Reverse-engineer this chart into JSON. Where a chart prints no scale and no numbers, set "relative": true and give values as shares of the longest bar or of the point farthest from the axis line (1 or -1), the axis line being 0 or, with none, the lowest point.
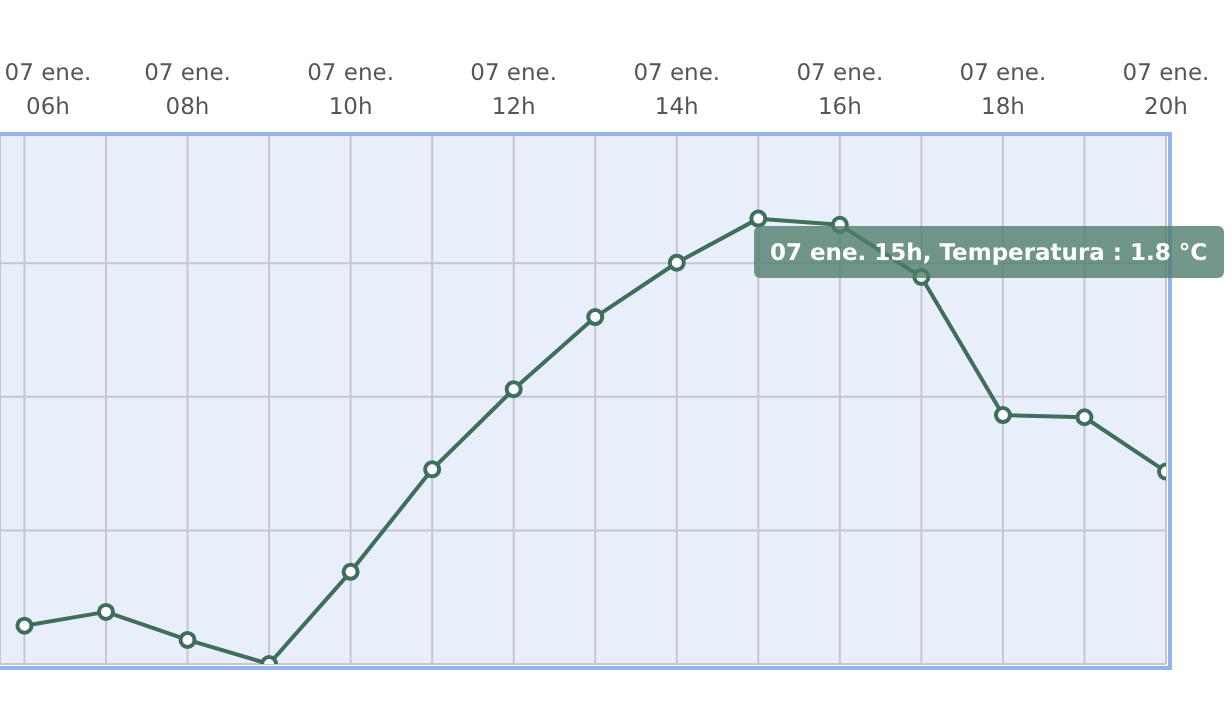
{
  "chart_data": {
    "type": "line",
    "relative": true,
    "categories": [
      "07 ene.\n06h",
      null,
      "07 ene.\n08h",
      null,
      "07 ene.\n10h",
      null,
      "07 ene.\n12h",
      null,
      "07 ene.\n14h",
      null,
      "07 ene.\n16h",
      null,
      "07 ene.\n18h",
      null,
      "07 ene.\n20h"
    ],
    "series": [
      {
        "color": "#3f6e5c",
        "values": [
          0.086,
          0.117,
          0.054,
          0,
          0.207,
          0.437,
          0.617,
          0.779,
          0.901,
          1,
          0.986,
          0.869,
          0.559,
          0.554,
          0.432
        ]
      }
    ],
    "annotations": [
      "07 ene. 15h, Temperatura : 1.8 °C"
    ],
    "grid": true,
    "marker": "circle",
    "line_style": "solid",
    "legend": false
  }
}
